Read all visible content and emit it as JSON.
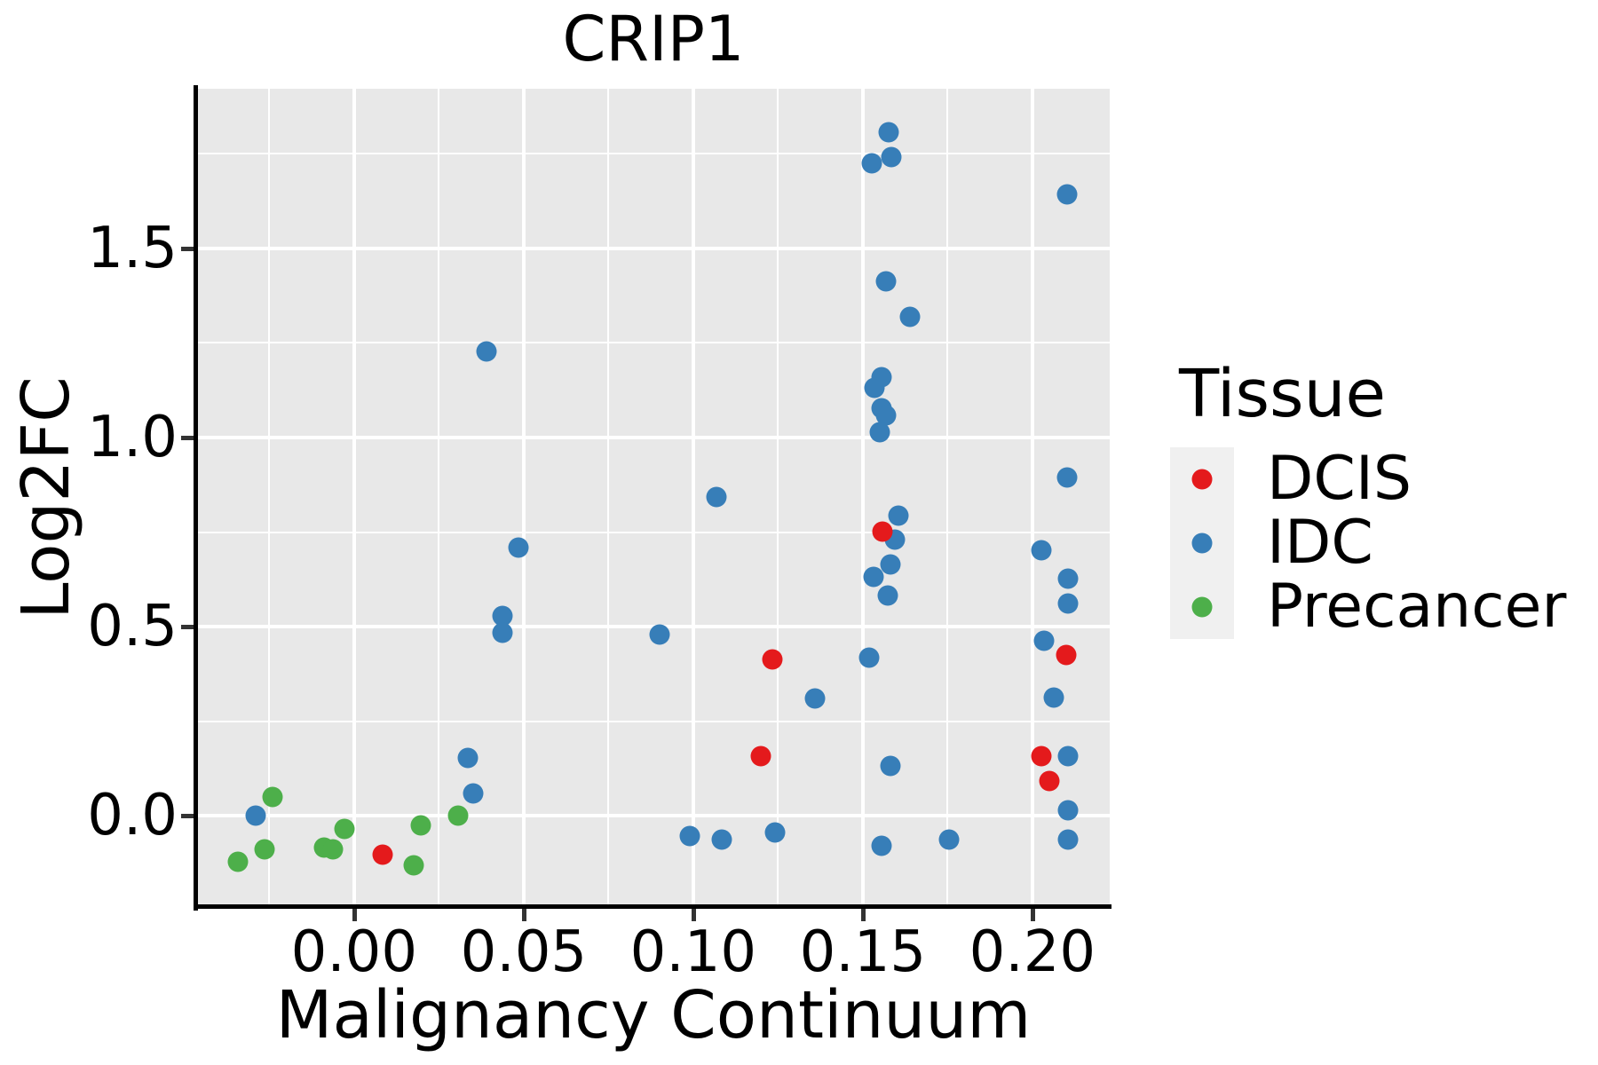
{
  "figure_title": "CRIP1",
  "chart_data": {
    "type": "scatter",
    "title": "CRIP1",
    "xlabel": "Malignancy Continuum",
    "ylabel": "Log2FC",
    "xlim": [
      -0.0463,
      0.2228
    ],
    "ylim": [
      -0.2394,
      1.9225
    ],
    "grid": "on",
    "background": "#E8E8E8",
    "x_major_ticks": [
      {
        "value": 0.0,
        "label": "0.00"
      },
      {
        "value": 0.05,
        "label": "0.05"
      },
      {
        "value": 0.1,
        "label": "0.10"
      },
      {
        "value": 0.15,
        "label": "0.15"
      },
      {
        "value": 0.2,
        "label": "0.20"
      }
    ],
    "x_minor_ticks": [
      -0.025,
      0.025,
      0.075,
      0.125,
      0.175
    ],
    "y_major_ticks": [
      {
        "value": 0.0,
        "label": "0.0"
      },
      {
        "value": 0.5,
        "label": "0.5"
      },
      {
        "value": 1.0,
        "label": "1.0"
      },
      {
        "value": 1.5,
        "label": "1.5"
      }
    ],
    "y_minor_ticks": [
      0.25,
      0.75,
      1.25,
      1.75
    ],
    "legend_title": "Tissue",
    "legend_position": "right",
    "series": [
      {
        "name": "IDC",
        "color": "#377EB8",
        "points": [
          [
            0.039,
            1.228
          ],
          [
            0.1576,
            1.808
          ],
          [
            0.1526,
            1.725
          ],
          [
            0.1584,
            1.742
          ],
          [
            0.1568,
            1.413
          ],
          [
            0.1639,
            1.319
          ],
          [
            0.1555,
            1.16
          ],
          [
            0.1534,
            1.131
          ],
          [
            0.1555,
            1.077
          ],
          [
            0.1568,
            1.059
          ],
          [
            0.155,
            1.014
          ],
          [
            0.2102,
            1.643
          ],
          [
            0.2102,
            0.894
          ],
          [
            0.1068,
            0.843
          ],
          [
            0.1605,
            0.793
          ],
          [
            0.1594,
            0.73
          ],
          [
            0.1581,
            0.664
          ],
          [
            0.1531,
            0.631
          ],
          [
            0.1573,
            0.582
          ],
          [
            0.09,
            0.479
          ],
          [
            0.1518,
            0.418
          ],
          [
            0.1359,
            0.31
          ],
          [
            0.1581,
            0.131
          ],
          [
            0.099,
            -0.054
          ],
          [
            0.1084,
            -0.063
          ],
          [
            0.1241,
            -0.045
          ],
          [
            0.1555,
            -0.08
          ],
          [
            0.1754,
            -0.063
          ],
          [
            0.0484,
            0.709
          ],
          [
            0.0437,
            0.528
          ],
          [
            0.0437,
            0.484
          ],
          [
            0.0335,
            0.153
          ],
          [
            0.0351,
            0.059
          ],
          [
            -0.0291,
            0.0
          ],
          [
            0.2026,
            0.702
          ],
          [
            0.2105,
            0.627
          ],
          [
            0.2105,
            0.561
          ],
          [
            0.2034,
            0.462
          ],
          [
            0.2063,
            0.312
          ],
          [
            0.2105,
            0.157
          ],
          [
            0.2105,
            0.014
          ],
          [
            0.2105,
            -0.063
          ]
        ]
      },
      {
        "name": "Precancer",
        "color": "#4DAF4A",
        "points": [
          [
            -0.0241,
            0.049
          ],
          [
            -0.0264,
            -0.089
          ],
          [
            -0.0343,
            -0.122
          ],
          [
            -0.0029,
            -0.035
          ],
          [
            -0.0089,
            -0.085
          ],
          [
            -0.0063,
            -0.089
          ],
          [
            0.0175,
            -0.131
          ],
          [
            0.0196,
            -0.026
          ],
          [
            0.0306,
            0.0
          ]
        ]
      },
      {
        "name": "DCIS",
        "color": "#E41A1C",
        "points": [
          [
            0.1558,
            0.751
          ],
          [
            0.1233,
            0.413
          ],
          [
            0.1199,
            0.157
          ],
          [
            0.0084,
            -0.103
          ],
          [
            0.2099,
            0.425
          ],
          [
            0.2026,
            0.157
          ],
          [
            0.205,
            0.092
          ]
        ]
      }
    ],
    "legend_order": [
      "DCIS",
      "IDC",
      "Precancer"
    ]
  }
}
